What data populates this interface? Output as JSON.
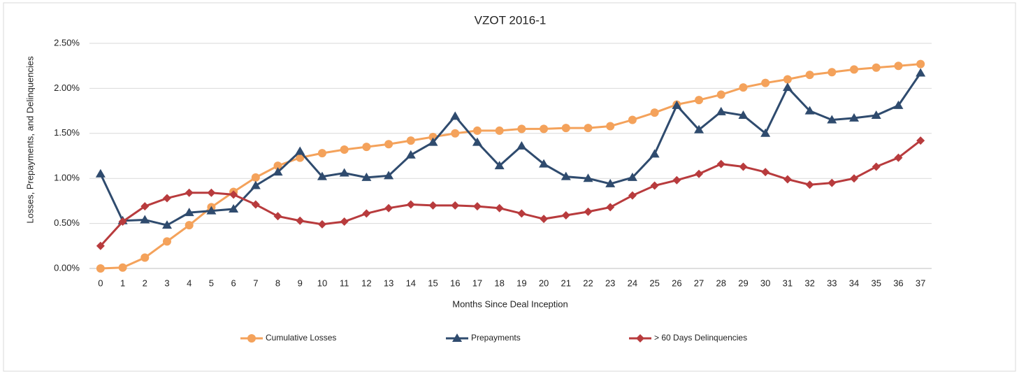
{
  "chart_data": {
    "type": "line",
    "title": "VZOT 2016-1",
    "x_label": "Months Since Deal Inception",
    "y_label": "Losses, Prepayments, and Delinquencies",
    "x": [
      0,
      1,
      2,
      3,
      4,
      5,
      6,
      7,
      8,
      9,
      10,
      11,
      12,
      13,
      14,
      15,
      16,
      17,
      18,
      19,
      20,
      21,
      22,
      23,
      24,
      25,
      26,
      27,
      28,
      29,
      30,
      31,
      32,
      33,
      34,
      35,
      36,
      37
    ],
    "ylim": [
      0,
      2.5
    ],
    "yticks": [
      {
        "value": 0,
        "label": "0.00%"
      },
      {
        "value": 0.5,
        "label": "0.50%"
      },
      {
        "value": 1,
        "label": "1.00%"
      },
      {
        "value": 1.5,
        "label": "1.50%"
      },
      {
        "value": 2,
        "label": "2.00%"
      },
      {
        "value": 2.5,
        "label": "2.50%"
      }
    ],
    "grid": true,
    "legend": "bottom",
    "series": [
      {
        "name": "Cumulative Losses",
        "color": "#f4a25b",
        "marker": "circle",
        "values": [
          0,
          0.01,
          0.12,
          0.3,
          0.48,
          0.68,
          0.85,
          1.01,
          1.14,
          1.23,
          1.28,
          1.32,
          1.35,
          1.38,
          1.42,
          1.46,
          1.5,
          1.53,
          1.53,
          1.55,
          1.55,
          1.56,
          1.56,
          1.58,
          1.65,
          1.73,
          1.82,
          1.87,
          1.93,
          2.01,
          2.06,
          2.1,
          2.15,
          2.18,
          2.21,
          2.23,
          2.25,
          2.27
        ]
      },
      {
        "name": "Prepayments",
        "color": "#2f4b6e",
        "marker": "triangle",
        "values": [
          1.05,
          0.53,
          0.54,
          0.48,
          0.62,
          0.64,
          0.66,
          0.92,
          1.07,
          1.3,
          1.02,
          1.06,
          1.01,
          1.03,
          1.26,
          1.4,
          1.69,
          1.4,
          1.14,
          1.36,
          1.16,
          1.02,
          1.0,
          0.94,
          1.01,
          1.27,
          1.81,
          1.54,
          1.74,
          1.7,
          1.5,
          2.01,
          1.75,
          1.65,
          1.67,
          1.7,
          1.81,
          2.17
        ]
      },
      {
        "name": "> 60 Days Delinquencies",
        "color": "#b83b3d",
        "marker": "diamond",
        "values": [
          0.25,
          0.52,
          0.69,
          0.78,
          0.84,
          0.84,
          0.82,
          0.71,
          0.58,
          0.53,
          0.49,
          0.52,
          0.61,
          0.67,
          0.71,
          0.7,
          0.7,
          0.69,
          0.67,
          0.61,
          0.55,
          0.59,
          0.63,
          0.68,
          0.81,
          0.92,
          0.98,
          1.05,
          1.16,
          1.13,
          1.07,
          0.99,
          0.93,
          0.95,
          1.0,
          1.13,
          1.23,
          1.42
        ]
      }
    ]
  }
}
